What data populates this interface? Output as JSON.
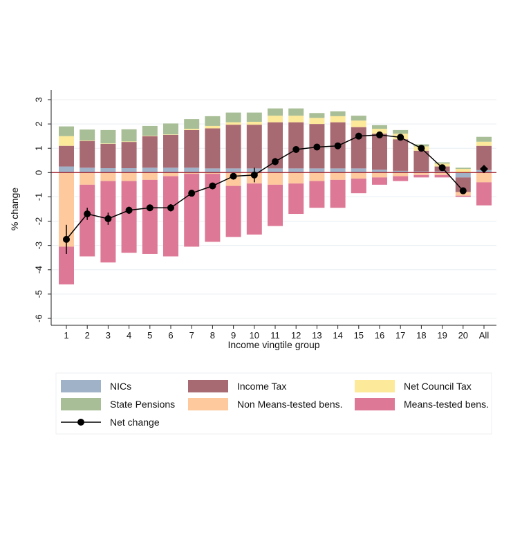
{
  "chart_data": {
    "type": "bar",
    "stacked": true,
    "xlabel": "Income vingtile group",
    "ylabel": "% change",
    "ylim": [
      -6,
      3
    ],
    "yticks": [
      3,
      2,
      1,
      0,
      -1,
      -2,
      -3,
      -4,
      -5,
      -6
    ],
    "grid": true,
    "legend_position": "bottom",
    "categories": [
      "1",
      "2",
      "3",
      "4",
      "5",
      "6",
      "7",
      "8",
      "9",
      "10",
      "11",
      "12",
      "13",
      "14",
      "15",
      "16",
      "17",
      "18",
      "19",
      "20",
      "All"
    ],
    "series": [
      {
        "name": "NICs",
        "color": "#9fb2c8",
        "values": [
          0.25,
          0.2,
          0.18,
          0.18,
          0.2,
          0.2,
          0.2,
          0.17,
          0.17,
          0.17,
          0.17,
          0.17,
          0.17,
          0.17,
          0.17,
          0.12,
          0.07,
          0.05,
          0.05,
          -0.2,
          0.1
        ]
      },
      {
        "name": "Income Tax",
        "color": "#a86a72",
        "values": [
          0.85,
          1.1,
          1.0,
          1.08,
          1.3,
          1.35,
          1.55,
          1.65,
          1.8,
          1.8,
          1.9,
          1.9,
          1.83,
          1.9,
          1.7,
          1.48,
          1.3,
          0.85,
          0.2,
          -0.6,
          1.0
        ]
      },
      {
        "name": "Net Council Tax",
        "color": "#fde99a",
        "values": [
          0.4,
          0.02,
          0.02,
          0.02,
          0.02,
          0.02,
          0.05,
          0.1,
          0.1,
          0.12,
          0.27,
          0.27,
          0.25,
          0.25,
          0.27,
          0.2,
          0.23,
          0.18,
          0.12,
          0.15,
          0.17
        ]
      },
      {
        "name": "State Pensions",
        "color": "#a8be96",
        "values": [
          0.4,
          0.45,
          0.55,
          0.5,
          0.4,
          0.45,
          0.4,
          0.4,
          0.4,
          0.38,
          0.3,
          0.3,
          0.2,
          0.2,
          0.2,
          0.15,
          0.15,
          0.08,
          0.05,
          0.05,
          0.2
        ]
      },
      {
        "name": "Non Means-tested bens.",
        "color": "#fdc99d",
        "values": [
          -3.05,
          -0.5,
          -0.35,
          -0.35,
          -0.3,
          -0.15,
          -0.05,
          -0.05,
          -0.55,
          -0.45,
          -0.5,
          -0.45,
          -0.35,
          -0.3,
          -0.25,
          -0.2,
          -0.15,
          -0.1,
          -0.1,
          -0.15,
          -0.4
        ]
      },
      {
        "name": "Means-tested bens.",
        "color": "#dd7896",
        "values": [
          -1.55,
          -2.95,
          -3.35,
          -2.95,
          -3.05,
          -3.3,
          -3.0,
          -2.8,
          -2.1,
          -2.1,
          -1.7,
          -1.25,
          -1.1,
          -1.15,
          -0.6,
          -0.3,
          -0.2,
          -0.1,
          -0.1,
          -0.05,
          -0.95
        ]
      },
      {
        "name": "Net change",
        "color": "#000000",
        "kind": "line",
        "values": [
          -2.75,
          -1.7,
          -1.9,
          -1.55,
          -1.45,
          -1.45,
          -0.85,
          -0.55,
          -0.15,
          -0.1,
          0.45,
          0.95,
          1.05,
          1.1,
          1.5,
          1.55,
          1.45,
          1.0,
          0.2,
          -0.75,
          0.15
        ],
        "ci_low": [
          -3.35,
          -1.95,
          -2.15,
          -1.7,
          -1.55,
          -1.6,
          -0.95,
          -0.6,
          -0.2,
          -0.4,
          0.3,
          0.9,
          1.0,
          1.03,
          1.45,
          1.5,
          1.4,
          0.95,
          0.1,
          -0.85,
          0.1
        ],
        "ci_high": [
          -2.15,
          -1.45,
          -1.65,
          -1.4,
          -1.35,
          -1.3,
          -0.75,
          -0.5,
          -0.1,
          0.2,
          0.6,
          1.0,
          1.1,
          1.17,
          1.55,
          1.6,
          1.5,
          1.05,
          0.3,
          -0.65,
          0.2
        ]
      }
    ]
  }
}
